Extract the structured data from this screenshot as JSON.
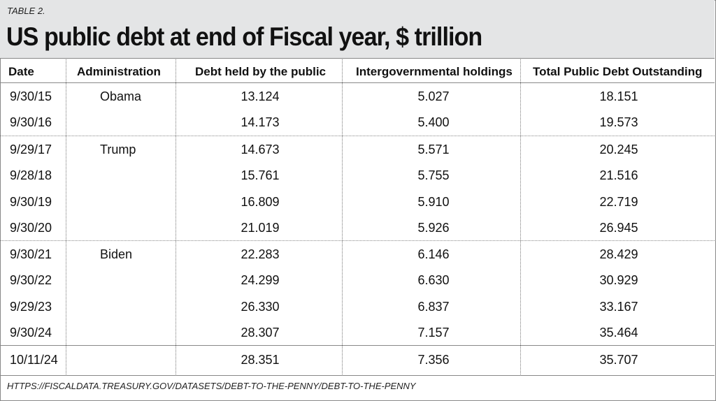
{
  "table_label": "TABLE 2.",
  "title": "US public debt at end of Fiscal year, $ trillion",
  "columns": [
    "Date",
    "Administration",
    "Debt held by the public",
    "Intergovernmental holdings",
    "Total Public Debt Outstanding"
  ],
  "rows": [
    {
      "date": "9/30/15",
      "admin": "Obama",
      "public": "13.124",
      "intergov": "5.027",
      "total": "18.151"
    },
    {
      "date": "9/30/16",
      "admin": "",
      "public": "14.173",
      "intergov": "5.400",
      "total": "19.573"
    },
    {
      "date": "9/29/17",
      "admin": "Trump",
      "public": "14.673",
      "intergov": "5.571",
      "total": "20.245"
    },
    {
      "date": "9/28/18",
      "admin": "",
      "public": "15.761",
      "intergov": "5.755",
      "total": "21.516"
    },
    {
      "date": "9/30/19",
      "admin": "",
      "public": "16.809",
      "intergov": "5.910",
      "total": "22.719"
    },
    {
      "date": "9/30/20",
      "admin": "",
      "public": "21.019",
      "intergov": "5.926",
      "total": "26.945"
    },
    {
      "date": "9/30/21",
      "admin": "Biden",
      "public": "22.283",
      "intergov": "6.146",
      "total": "28.429"
    },
    {
      "date": "9/30/22",
      "admin": "",
      "public": "24.299",
      "intergov": "6.630",
      "total": "30.929"
    },
    {
      "date": "9/29/23",
      "admin": "",
      "public": "26.330",
      "intergov": "6.837",
      "total": "33.167"
    },
    {
      "date": "9/30/24",
      "admin": "",
      "public": "28.307",
      "intergov": "7.157",
      "total": "35.464"
    },
    {
      "date": "10/11/24",
      "admin": "",
      "public": "28.351",
      "intergov": "7.356",
      "total": "35.707"
    }
  ],
  "source": "HTTPS://FISCALDATA.TREASURY.GOV/DATASETS/DEBT-TO-THE-PENNY/DEBT-TO-THE-PENNY"
}
